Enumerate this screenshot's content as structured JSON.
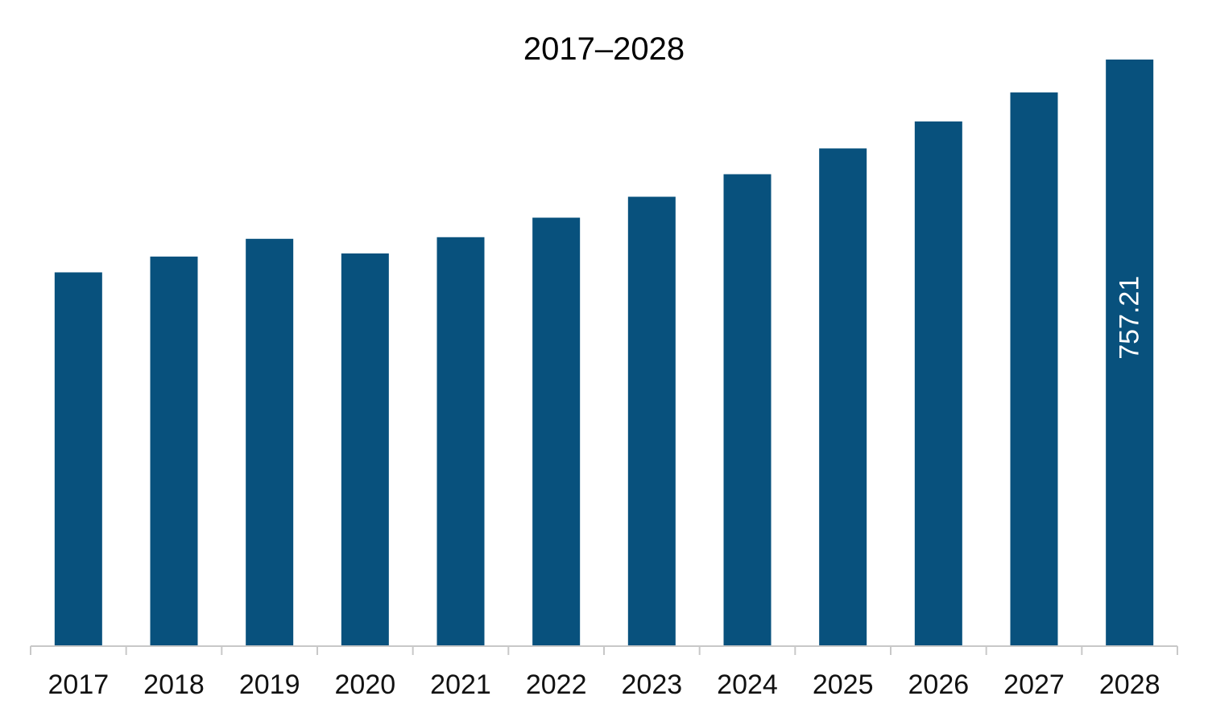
{
  "chart_data": {
    "type": "bar",
    "title": "2017–2028",
    "xlabel": "",
    "ylabel": "",
    "categories": [
      "2017",
      "2018",
      "2019",
      "2020",
      "2021",
      "2022",
      "2023",
      "2024",
      "2025",
      "2026",
      "2027",
      "2028"
    ],
    "values": [
      482.5,
      502.9,
      525.8,
      506.9,
      527.9,
      553.1,
      580.1,
      609.2,
      642.5,
      677.3,
      714.8,
      757.21
    ],
    "data_labels": [
      {
        "category": "2028",
        "text": "757.21"
      }
    ],
    "ylim": [
      0,
      757.21
    ],
    "grid": false,
    "legend": "none",
    "colors": {
      "bar": "#08517d",
      "axis": "#c8c8c8",
      "label_on_bar": "#ffffff"
    }
  }
}
